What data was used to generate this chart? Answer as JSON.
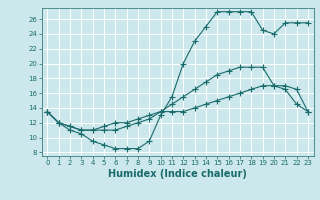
{
  "title": "",
  "xlabel": "Humidex (Indice chaleur)",
  "ylabel": "",
  "bg_color": "#cce8ec",
  "line_color": "#1a6b6b",
  "grid_color": "#ffffff",
  "xlim": [
    -0.5,
    23.5
  ],
  "ylim": [
    7.5,
    27.5
  ],
  "xticks": [
    0,
    1,
    2,
    3,
    4,
    5,
    6,
    7,
    8,
    9,
    10,
    11,
    12,
    13,
    14,
    15,
    16,
    17,
    18,
    19,
    20,
    21,
    22,
    23
  ],
  "yticks": [
    8,
    10,
    12,
    14,
    16,
    18,
    20,
    22,
    24,
    26
  ],
  "line1_x": [
    0,
    1,
    2,
    3,
    4,
    5,
    6,
    7,
    8,
    9,
    10,
    11,
    12,
    13,
    14,
    15,
    16,
    17,
    18,
    19,
    20,
    21,
    22,
    23
  ],
  "line1_y": [
    13.5,
    12.0,
    11.0,
    10.5,
    9.5,
    9.0,
    8.5,
    8.5,
    8.5,
    9.5,
    13.0,
    15.5,
    20.0,
    23.0,
    25.0,
    27.0,
    27.0,
    27.0,
    27.0,
    24.5,
    24.0,
    25.5,
    25.5,
    25.5
  ],
  "line2_x": [
    0,
    1,
    2,
    3,
    4,
    5,
    6,
    7,
    8,
    9,
    10,
    11,
    12,
    13,
    14,
    15,
    16,
    17,
    18,
    19,
    20,
    21,
    22,
    23
  ],
  "line2_y": [
    13.5,
    12.0,
    11.5,
    11.0,
    11.0,
    11.0,
    11.0,
    11.5,
    12.0,
    12.5,
    13.5,
    14.5,
    15.5,
    16.5,
    17.5,
    18.5,
    19.0,
    19.5,
    19.5,
    19.5,
    17.0,
    16.5,
    14.5,
    13.5
  ],
  "line3_x": [
    0,
    1,
    2,
    3,
    4,
    5,
    6,
    7,
    8,
    9,
    10,
    11,
    12,
    13,
    14,
    15,
    16,
    17,
    18,
    19,
    20,
    21,
    22,
    23
  ],
  "line3_y": [
    13.5,
    12.0,
    11.5,
    11.0,
    11.0,
    11.5,
    12.0,
    12.0,
    12.5,
    13.0,
    13.5,
    13.5,
    13.5,
    14.0,
    14.5,
    15.0,
    15.5,
    16.0,
    16.5,
    17.0,
    17.0,
    17.0,
    16.5,
    13.5
  ],
  "marker": "+",
  "markersize": 4.0,
  "linewidth": 0.8,
  "xlabel_fontsize": 7,
  "tick_fontsize": 5
}
